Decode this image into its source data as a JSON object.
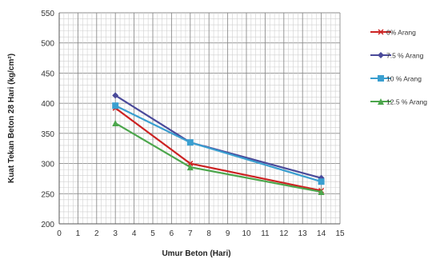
{
  "chart_data": {
    "type": "line",
    "xlabel": "Umur Beton  (Hari)",
    "ylabel": "Kuat Tekan Beton 28 Hari (kg/cm²)",
    "xlim": [
      0,
      15
    ],
    "ylim": [
      200,
      550
    ],
    "xticks": [
      0,
      1,
      2,
      3,
      4,
      5,
      6,
      7,
      8,
      9,
      10,
      11,
      12,
      13,
      14,
      15
    ],
    "yticks": [
      200,
      250,
      300,
      350,
      400,
      450,
      500,
      550
    ],
    "grid": true,
    "legend_position": "right",
    "series": [
      {
        "name": "0% Arang",
        "color": "#cc2222",
        "marker": "x",
        "x": [
          3,
          7,
          14
        ],
        "y": [
          392,
          300,
          255
        ]
      },
      {
        "name": "7.5 % Arang",
        "color": "#4a4a9a",
        "marker": "diamond",
        "x": [
          3,
          7,
          14
        ],
        "y": [
          413,
          335,
          276
        ]
      },
      {
        "name": "10 % Arang",
        "color": "#3a9fd0",
        "marker": "square",
        "x": [
          3,
          7,
          14
        ],
        "y": [
          396,
          335,
          270
        ]
      },
      {
        "name": "12.5 % Arang",
        "color": "#4ca64c",
        "marker": "triangle",
        "x": [
          3,
          7,
          14
        ],
        "y": [
          367,
          294,
          253
        ]
      }
    ]
  }
}
